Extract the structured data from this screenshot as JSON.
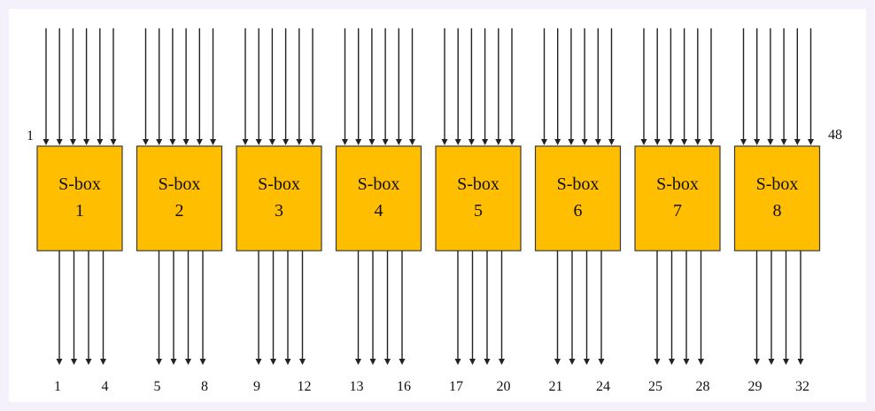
{
  "diagram": {
    "boxes": [
      {
        "title": "S-box",
        "number": "1",
        "out_first": "1",
        "out_last": "4"
      },
      {
        "title": "S-box",
        "number": "2",
        "out_first": "5",
        "out_last": "8"
      },
      {
        "title": "S-box",
        "number": "3",
        "out_first": "9",
        "out_last": "12"
      },
      {
        "title": "S-box",
        "number": "4",
        "out_first": "13",
        "out_last": "16"
      },
      {
        "title": "S-box",
        "number": "5",
        "out_first": "17",
        "out_last": "20"
      },
      {
        "title": "S-box",
        "number": "6",
        "out_first": "21",
        "out_last": "24"
      },
      {
        "title": "S-box",
        "number": "7",
        "out_first": "25",
        "out_last": "28"
      },
      {
        "title": "S-box",
        "number": "8",
        "out_first": "29",
        "out_last": "32"
      }
    ],
    "input_first_label": "1",
    "input_last_label": "48",
    "box_color": "#ffbe00",
    "line_color": "#222222",
    "inputs_per_box": 6,
    "outputs_per_box": 4
  }
}
